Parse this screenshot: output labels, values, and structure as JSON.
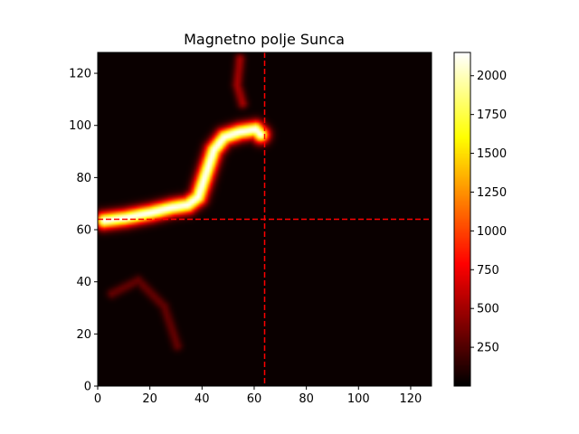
{
  "chart_data": {
    "type": "heatmap",
    "title": "Magnetno polje Sunca",
    "xlabel": "",
    "ylabel": "",
    "xlim": [
      0,
      128
    ],
    "ylim": [
      0,
      128
    ],
    "x_ticks": [
      "0",
      "20",
      "40",
      "60",
      "80",
      "100",
      "120"
    ],
    "y_ticks": [
      "0",
      "20",
      "40",
      "60",
      "80",
      "100",
      "120"
    ],
    "colormap": "hot",
    "colorbar": {
      "range": [
        0,
        2150
      ],
      "ticks": [
        "250",
        "500",
        "750",
        "1000",
        "1250",
        "1500",
        "1750",
        "2000"
      ]
    },
    "crosshair": {
      "x": 64,
      "y": 64,
      "color": "#ff0000",
      "style": "dashed"
    },
    "background_level": 30,
    "features": [
      {
        "label": "bright filament",
        "points": [
          [
            2,
            63
          ],
          [
            10,
            64
          ],
          [
            20,
            66
          ],
          [
            28,
            68
          ],
          [
            34,
            69
          ],
          [
            38,
            72
          ],
          [
            40,
            78
          ],
          [
            42,
            84
          ],
          [
            44,
            90
          ],
          [
            48,
            95
          ],
          [
            54,
            97
          ],
          [
            60,
            98
          ],
          [
            62,
            96
          ]
        ],
        "peak": 2150
      },
      {
        "label": "lower swirls",
        "points": [
          [
            5,
            35
          ],
          [
            15,
            40
          ],
          [
            25,
            30
          ],
          [
            30,
            15
          ]
        ],
        "peak": 300
      },
      {
        "label": "upper streak",
        "points": [
          [
            54,
            125
          ],
          [
            53,
            115
          ],
          [
            55,
            108
          ]
        ],
        "peak": 500
      }
    ]
  }
}
